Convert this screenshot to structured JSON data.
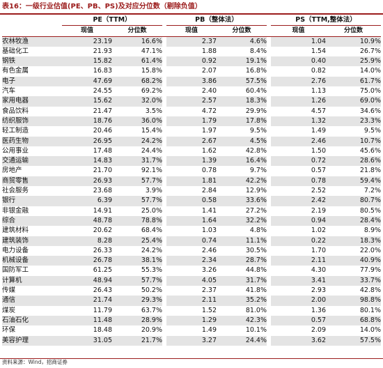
{
  "title": "表16：一级行业估值(PE、PB、PS)及对应分位数（剔除负值）",
  "groups": {
    "pe": "PE（TTM）",
    "pb": "PB（整体法）",
    "ps": "PS（TTM,整体法）"
  },
  "subheaders": {
    "current": "现值",
    "percentile": "分位数"
  },
  "rows": [
    {
      "industry": "农林牧渔",
      "pe": "23.19",
      "pe_pct": "16.6%",
      "pb": "2.37",
      "pb_pct": "4.6%",
      "ps": "1.04",
      "ps_pct": "10.9%"
    },
    {
      "industry": "基础化工",
      "pe": "21.93",
      "pe_pct": "47.1%",
      "pb": "1.88",
      "pb_pct": "8.4%",
      "ps": "1.54",
      "ps_pct": "26.7%"
    },
    {
      "industry": "钢铁",
      "pe": "15.82",
      "pe_pct": "61.4%",
      "pb": "0.92",
      "pb_pct": "19.1%",
      "ps": "0.40",
      "ps_pct": "25.9%"
    },
    {
      "industry": "有色金属",
      "pe": "16.83",
      "pe_pct": "15.8%",
      "pb": "2.07",
      "pb_pct": "16.8%",
      "ps": "0.82",
      "ps_pct": "14.0%"
    },
    {
      "industry": "电子",
      "pe": "47.69",
      "pe_pct": "68.2%",
      "pb": "3.86",
      "pb_pct": "57.5%",
      "ps": "2.76",
      "ps_pct": "61.7%"
    },
    {
      "industry": "汽车",
      "pe": "24.55",
      "pe_pct": "69.2%",
      "pb": "2.40",
      "pb_pct": "60.4%",
      "ps": "1.13",
      "ps_pct": "75.0%"
    },
    {
      "industry": "家用电器",
      "pe": "15.62",
      "pe_pct": "32.0%",
      "pb": "2.57",
      "pb_pct": "18.3%",
      "ps": "1.26",
      "ps_pct": "69.0%"
    },
    {
      "industry": "食品饮料",
      "pe": "21.47",
      "pe_pct": "3.5%",
      "pb": "4.72",
      "pb_pct": "29.9%",
      "ps": "4.57",
      "ps_pct": "34.6%"
    },
    {
      "industry": "纺织服饰",
      "pe": "18.76",
      "pe_pct": "36.0%",
      "pb": "1.79",
      "pb_pct": "17.8%",
      "ps": "1.32",
      "ps_pct": "23.3%"
    },
    {
      "industry": "轻工制造",
      "pe": "20.46",
      "pe_pct": "15.4%",
      "pb": "1.97",
      "pb_pct": "9.5%",
      "ps": "1.49",
      "ps_pct": "9.5%"
    },
    {
      "industry": "医药生物",
      "pe": "26.95",
      "pe_pct": "24.2%",
      "pb": "2.67",
      "pb_pct": "4.5%",
      "ps": "2.46",
      "ps_pct": "10.7%"
    },
    {
      "industry": "公用事业",
      "pe": "17.48",
      "pe_pct": "24.4%",
      "pb": "1.62",
      "pb_pct": "42.8%",
      "ps": "1.50",
      "ps_pct": "45.6%"
    },
    {
      "industry": "交通运输",
      "pe": "14.83",
      "pe_pct": "31.7%",
      "pb": "1.39",
      "pb_pct": "16.4%",
      "ps": "0.72",
      "ps_pct": "28.6%"
    },
    {
      "industry": "房地产",
      "pe": "21.70",
      "pe_pct": "92.1%",
      "pb": "0.78",
      "pb_pct": "9.7%",
      "ps": "0.57",
      "ps_pct": "21.8%"
    },
    {
      "industry": "商贸零售",
      "pe": "26.93",
      "pe_pct": "57.7%",
      "pb": "1.81",
      "pb_pct": "42.2%",
      "ps": "0.78",
      "ps_pct": "59.4%"
    },
    {
      "industry": "社会服务",
      "pe": "23.68",
      "pe_pct": "3.9%",
      "pb": "2.84",
      "pb_pct": "12.9%",
      "ps": "2.52",
      "ps_pct": "7.2%"
    },
    {
      "industry": "银行",
      "pe": "6.39",
      "pe_pct": "57.7%",
      "pb": "0.58",
      "pb_pct": "33.6%",
      "ps": "2.42",
      "ps_pct": "80.7%"
    },
    {
      "industry": "非银金融",
      "pe": "14.91",
      "pe_pct": "25.0%",
      "pb": "1.41",
      "pb_pct": "27.2%",
      "ps": "2.19",
      "ps_pct": "80.5%"
    },
    {
      "industry": "综合",
      "pe": "48.78",
      "pe_pct": "78.8%",
      "pb": "1.64",
      "pb_pct": "32.2%",
      "ps": "0.94",
      "ps_pct": "28.4%"
    },
    {
      "industry": "建筑材料",
      "pe": "20.62",
      "pe_pct": "68.4%",
      "pb": "1.03",
      "pb_pct": "4.8%",
      "ps": "1.02",
      "ps_pct": "8.9%"
    },
    {
      "industry": "建筑装饰",
      "pe": "8.28",
      "pe_pct": "25.4%",
      "pb": "0.74",
      "pb_pct": "11.1%",
      "ps": "0.22",
      "ps_pct": "18.3%"
    },
    {
      "industry": "电力设备",
      "pe": "26.33",
      "pe_pct": "24.2%",
      "pb": "2.46",
      "pb_pct": "30.5%",
      "ps": "1.70",
      "ps_pct": "22.0%"
    },
    {
      "industry": "机械设备",
      "pe": "26.78",
      "pe_pct": "38.1%",
      "pb": "2.34",
      "pb_pct": "28.7%",
      "ps": "2.11",
      "ps_pct": "40.9%"
    },
    {
      "industry": "国防军工",
      "pe": "61.25",
      "pe_pct": "55.3%",
      "pb": "3.26",
      "pb_pct": "44.8%",
      "ps": "4.30",
      "ps_pct": "77.9%"
    },
    {
      "industry": "计算机",
      "pe": "48.94",
      "pe_pct": "57.7%",
      "pb": "4.05",
      "pb_pct": "31.7%",
      "ps": "3.41",
      "ps_pct": "33.7%"
    },
    {
      "industry": "传媒",
      "pe": "26.43",
      "pe_pct": "50.2%",
      "pb": "2.37",
      "pb_pct": "41.8%",
      "ps": "2.93",
      "ps_pct": "42.8%"
    },
    {
      "industry": "通信",
      "pe": "21.74",
      "pe_pct": "29.3%",
      "pb": "2.11",
      "pb_pct": "35.2%",
      "ps": "2.00",
      "ps_pct": "98.8%"
    },
    {
      "industry": "煤炭",
      "pe": "11.79",
      "pe_pct": "63.7%",
      "pb": "1.52",
      "pb_pct": "81.0%",
      "ps": "1.36",
      "ps_pct": "80.1%"
    },
    {
      "industry": "石油石化",
      "pe": "11.48",
      "pe_pct": "28.9%",
      "pb": "1.29",
      "pb_pct": "42.3%",
      "ps": "0.57",
      "ps_pct": "68.8%"
    },
    {
      "industry": "环保",
      "pe": "18.48",
      "pe_pct": "20.9%",
      "pb": "1.49",
      "pb_pct": "10.1%",
      "ps": "2.09",
      "ps_pct": "14.0%"
    },
    {
      "industry": "美容护理",
      "pe": "31.05",
      "pe_pct": "21.7%",
      "pb": "3.27",
      "pb_pct": "24.4%",
      "ps": "3.62",
      "ps_pct": "57.5%"
    }
  ],
  "footer": "资料来源：Wind，招商证券"
}
